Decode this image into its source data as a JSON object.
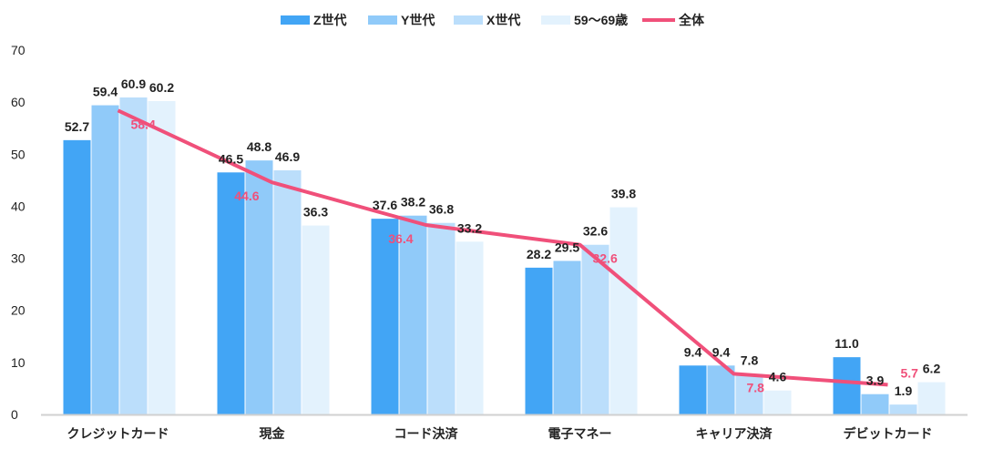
{
  "chart_data": {
    "type": "bar",
    "title": "",
    "xlabel": "",
    "ylabel": "",
    "ylim": [
      0,
      70
    ],
    "yticks": [
      0,
      10,
      20,
      30,
      40,
      50,
      60,
      70
    ],
    "grid": false,
    "legend_position": "top-center",
    "categories": [
      "クレジットカード",
      "現金",
      "コード決済",
      "電子マネー",
      "キャリア決済",
      "デビットカード"
    ],
    "series": [
      {
        "name": "Z世代",
        "type": "bar",
        "color": "#42a5f5",
        "values": [
          52.7,
          46.5,
          37.6,
          28.2,
          9.4,
          11.0
        ]
      },
      {
        "name": "Y世代",
        "type": "bar",
        "color": "#90caf9",
        "values": [
          59.4,
          48.8,
          38.2,
          29.5,
          9.4,
          3.9
        ]
      },
      {
        "name": "X世代",
        "type": "bar",
        "color": "#bbdefb",
        "values": [
          60.9,
          46.9,
          36.8,
          32.6,
          7.8,
          1.9
        ]
      },
      {
        "name": "59〜69歳",
        "type": "bar",
        "color": "#e3f2fd",
        "values": [
          60.2,
          36.3,
          33.2,
          39.8,
          4.6,
          6.2
        ]
      },
      {
        "name": "全体",
        "type": "line",
        "color": "#f0507a",
        "values": [
          58.4,
          44.6,
          36.4,
          32.6,
          7.8,
          5.7
        ]
      }
    ]
  }
}
